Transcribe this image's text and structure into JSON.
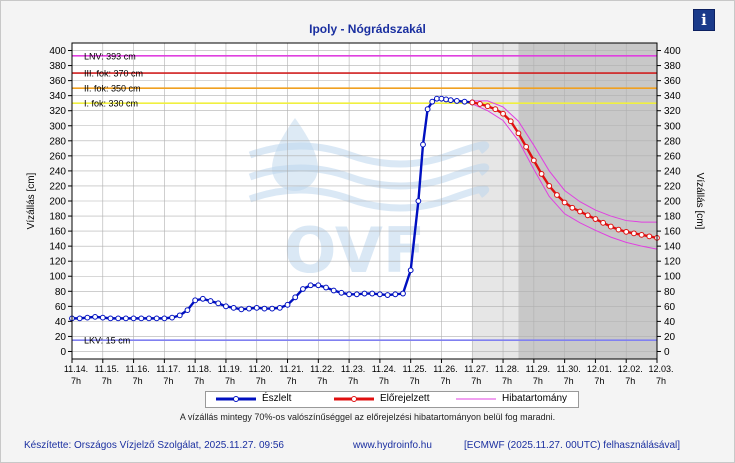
{
  "title": "Ipoly - Nógrádszakál",
  "info_icon": "info-icon",
  "y_axis": {
    "label_left": "Vízállás [cm]",
    "label_right": "Vízállás [cm]",
    "min": -10,
    "max": 410,
    "ticks": [
      0,
      20,
      40,
      60,
      80,
      100,
      120,
      140,
      160,
      180,
      200,
      220,
      240,
      260,
      280,
      300,
      320,
      340,
      360,
      380,
      400
    ]
  },
  "x_axis": {
    "start": "2025.11.14 07:00",
    "end": "2025.12.03 07:00",
    "tick_dates": [
      "11.14.",
      "11.15.",
      "11.16.",
      "11.17.",
      "11.18.",
      "11.19.",
      "11.20.",
      "11.21.",
      "11.22.",
      "11.23.",
      "11.24.",
      "11.25.",
      "11.26.",
      "11.27.",
      "11.28.",
      "11.29.",
      "11.30.",
      "12.01.",
      "12.02.",
      "12.03."
    ],
    "tick_hour": "7h"
  },
  "thresholds": [
    {
      "label": "LNV: 393 cm",
      "value": 393,
      "color": "#e040e0"
    },
    {
      "label": "III. fok: 370 cm",
      "value": 370,
      "color": "#d02020"
    },
    {
      "label": "II. fok: 350 cm",
      "value": 350,
      "color": "#f0a020"
    },
    {
      "label": "I. fok: 330 cm",
      "value": 330,
      "color": "#f0f040"
    },
    {
      "label": "LKV: 15 cm",
      "value": 15,
      "color": "#8080f0"
    }
  ],
  "chart_data": {
    "type": "line",
    "x_unit": "days after 2025.11.14 07:00",
    "series": [
      {
        "name": "Észlelt",
        "color": "#0010c0",
        "x": [
          0,
          0.25,
          0.5,
          0.75,
          1,
          1.25,
          1.5,
          1.75,
          2,
          2.25,
          2.5,
          2.75,
          3,
          3.25,
          3.5,
          3.75,
          4,
          4.25,
          4.5,
          4.75,
          5,
          5.25,
          5.5,
          5.75,
          6,
          6.25,
          6.5,
          6.75,
          7,
          7.25,
          7.5,
          7.75,
          8,
          8.25,
          8.5,
          8.75,
          9,
          9.25,
          9.5,
          9.75,
          10,
          10.25,
          10.5,
          10.75,
          11,
          11.25,
          11.4,
          11.55,
          11.7,
          11.85,
          12,
          12.15,
          12.3,
          12.5,
          12.75,
          13
        ],
        "y": [
          44,
          44,
          45,
          46,
          45,
          44,
          44,
          44,
          44,
          44,
          44,
          44,
          44,
          45,
          48,
          55,
          68,
          70,
          67,
          64,
          60,
          58,
          56,
          57,
          58,
          57,
          57,
          58,
          62,
          72,
          83,
          88,
          88,
          85,
          81,
          78,
          76,
          76,
          77,
          77,
          76,
          75,
          76,
          77,
          108,
          200,
          275,
          322,
          332,
          336,
          336,
          335,
          334,
          333,
          332,
          331
        ]
      },
      {
        "name": "Előrejelzett",
        "color": "#e01010",
        "x": [
          13,
          13.25,
          13.5,
          13.75,
          14,
          14.25,
          14.5,
          14.75,
          15,
          15.25,
          15.5,
          15.75,
          16,
          16.25,
          16.5,
          16.75,
          17,
          17.25,
          17.5,
          17.75,
          18,
          18.25,
          18.5,
          18.75,
          19
        ],
        "y": [
          331,
          329,
          326,
          322,
          316,
          306,
          290,
          272,
          254,
          236,
          220,
          208,
          198,
          191,
          186,
          181,
          176,
          171,
          166,
          162,
          159,
          157,
          155,
          153,
          151
        ]
      }
    ],
    "error_band": {
      "name": "Hibatartomány",
      "color": "#e040e0",
      "x": [
        13,
        13.5,
        14,
        14.5,
        15,
        15.5,
        16,
        16.5,
        17,
        17.5,
        18,
        18.5,
        19
      ],
      "upper": [
        333,
        333,
        325,
        306,
        274,
        240,
        214,
        199,
        188,
        180,
        174,
        172,
        172
      ],
      "lower": [
        329,
        320,
        307,
        280,
        242,
        206,
        183,
        171,
        161,
        152,
        145,
        140,
        136
      ]
    },
    "shaded_regions": [
      {
        "from": 13,
        "to": 14.5,
        "color": "#e6e6e6"
      },
      {
        "from": 14.5,
        "to": 19,
        "color": "#c8c8c8"
      }
    ],
    "grid": true,
    "legend_position": "bottom"
  },
  "legend": {
    "observed": "Észlelt",
    "forecast": "Előrejelzett",
    "error": "Hibatartomány"
  },
  "note": "A vízállás mintegy 70%-os valószínűséggel az előrejelzési hibatartományon belül fog maradni.",
  "footer": {
    "left": "Készítette: Országos Vízjelző Szolgálat, 2025.11.27. 09:56",
    "url": "www.hydroinfo.hu",
    "right": "[ECMWF (2025.11.27. 00UTC) felhasználásával]"
  },
  "watermark": "OVF"
}
